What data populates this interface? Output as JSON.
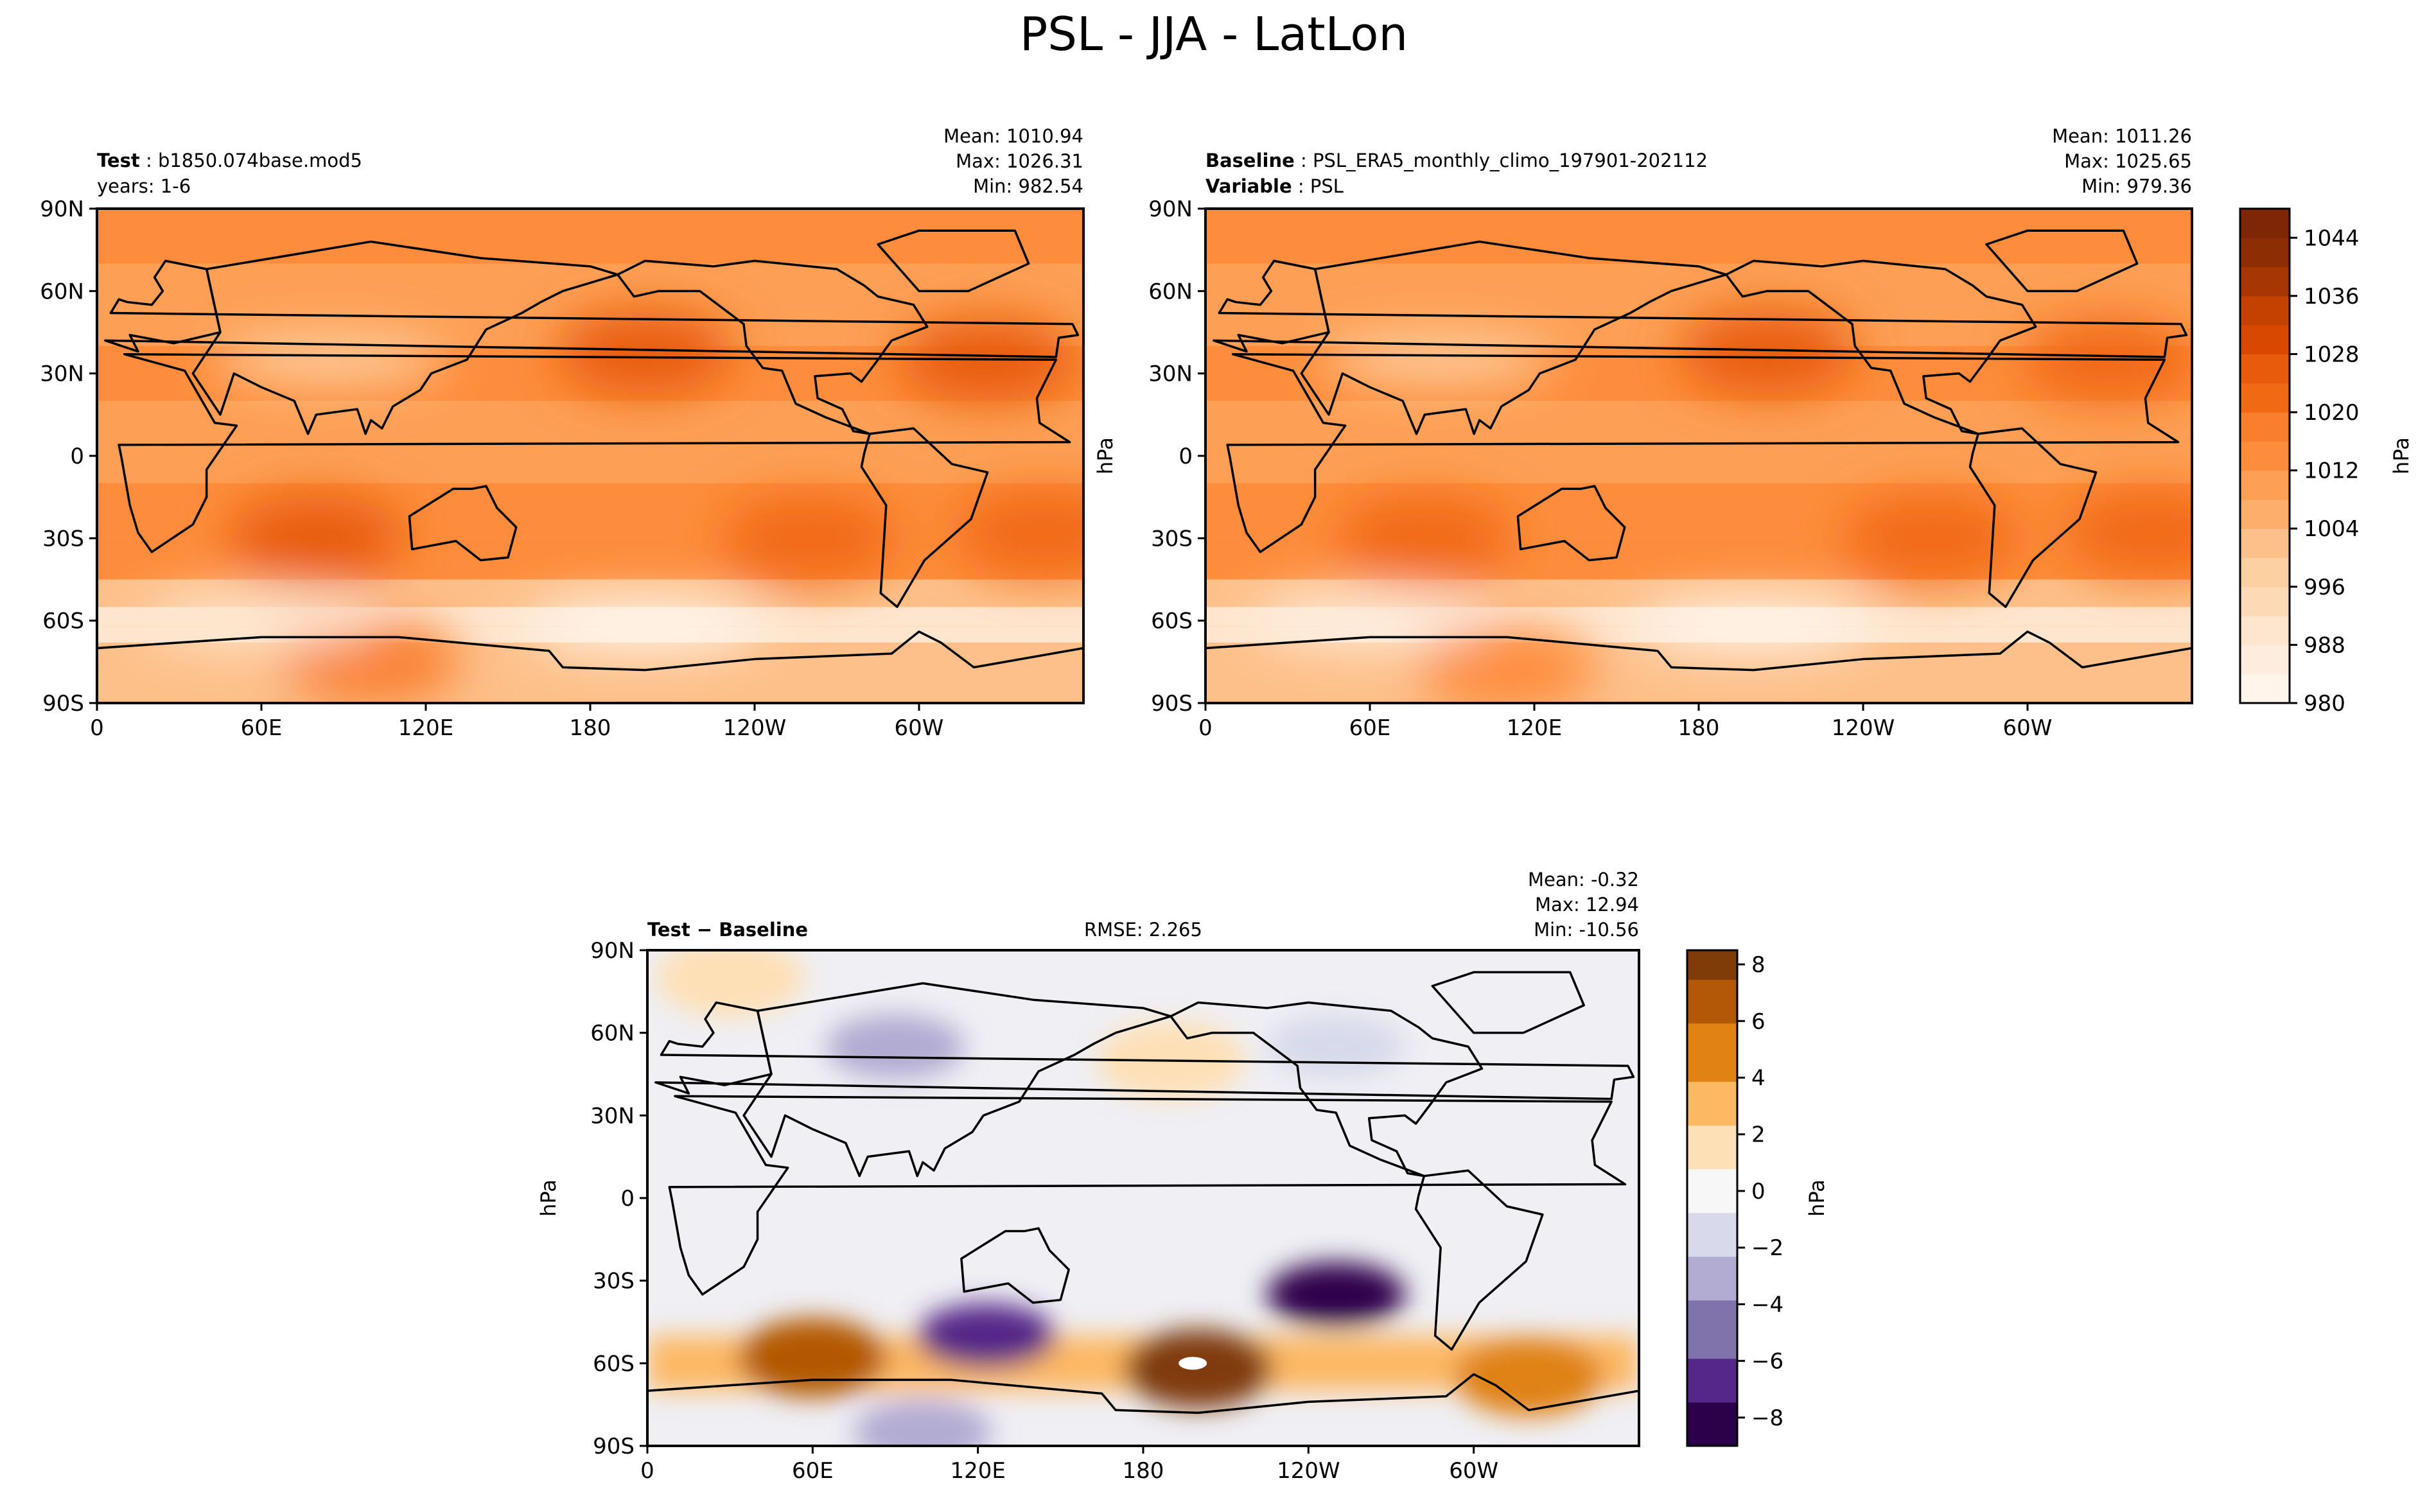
{
  "figure": {
    "title": "PSL - JJA - LatLon"
  },
  "chart_data": [
    {
      "type": "heatmap",
      "panel": "test",
      "label_bold": "Test",
      "label_text": "b1850.074base.mod5",
      "label_line2": "years: 1-6",
      "stats": [
        "Mean: 1010.94",
        "Max: 1026.31",
        "Min: 982.54"
      ],
      "lat_ticks": [
        "90N",
        "60N",
        "30N",
        "0",
        "30S",
        "60S",
        "90S"
      ],
      "lon_ticks": [
        "0",
        "60E",
        "120E",
        "180",
        "120W",
        "60W"
      ],
      "ylabel": "",
      "xlim": [
        0,
        360
      ],
      "ylim": [
        -90,
        90
      ],
      "mean": 1010.94,
      "max": 1026.31,
      "min": 982.54,
      "highs": [
        {
          "lon": 200,
          "lat": 38,
          "value": 1026
        },
        {
          "lon": 325,
          "lat": 35,
          "value": 1024
        },
        {
          "lon": 80,
          "lat": -30,
          "value": 1024
        },
        {
          "lon": 260,
          "lat": -30,
          "value": 1021
        },
        {
          "lon": 345,
          "lat": -28,
          "value": 1021
        },
        {
          "lon": 100,
          "lat": -75,
          "value": 1018
        }
      ],
      "lows": [
        {
          "lon": 85,
          "lat": 35,
          "value": 999
        },
        {
          "lon": 200,
          "lat": -62,
          "value": 983
        },
        {
          "lon": 60,
          "lat": -60,
          "value": 990
        }
      ]
    },
    {
      "type": "heatmap",
      "panel": "baseline",
      "label_bold": "Baseline",
      "label_text": "PSL_ERA5_monthly_climo_197901-202112",
      "label_bold2": "Variable",
      "label_text2": "PSL",
      "stats": [
        "Mean: 1011.26",
        "Max: 1025.65",
        "Min: 979.36"
      ],
      "lat_ticks": [
        "90N",
        "60N",
        "30N",
        "0",
        "30S",
        "60S",
        "90S"
      ],
      "lon_ticks": [
        "0",
        "60E",
        "120E",
        "180",
        "120W",
        "60W"
      ],
      "ylabel": "hPa",
      "xlim": [
        0,
        360
      ],
      "ylim": [
        -90,
        90
      ],
      "mean": 1011.26,
      "max": 1025.65,
      "min": 979.36,
      "highs": [
        {
          "lon": 205,
          "lat": 38,
          "value": 1025
        },
        {
          "lon": 330,
          "lat": 35,
          "value": 1023
        },
        {
          "lon": 80,
          "lat": -30,
          "value": 1021
        },
        {
          "lon": 265,
          "lat": -30,
          "value": 1021
        },
        {
          "lon": 345,
          "lat": -28,
          "value": 1020
        },
        {
          "lon": 110,
          "lat": -78,
          "value": 1014
        }
      ],
      "lows": [
        {
          "lon": 85,
          "lat": 35,
          "value": 998
        },
        {
          "lon": 200,
          "lat": -62,
          "value": 982
        },
        {
          "lon": 60,
          "lat": -60,
          "value": 986
        }
      ],
      "colorbar": {
        "label": "hPa",
        "range": [
          980,
          1048
        ],
        "ticks": [
          "980",
          "988",
          "996",
          "1004",
          "1012",
          "1020",
          "1028",
          "1036",
          "1044"
        ],
        "colors": [
          "#fff5eb",
          "#feedde",
          "#fee6ce",
          "#fdd9b5",
          "#fdd0a2",
          "#fdc08a",
          "#fdae6b",
          "#fd9f55",
          "#fd8d3c",
          "#f97f2e",
          "#f16913",
          "#e85b0c",
          "#d94801",
          "#c44102",
          "#a63603",
          "#8c2d04",
          "#7f2704"
        ]
      }
    },
    {
      "type": "heatmap",
      "panel": "difference",
      "label_bold": "Test − Baseline",
      "rmse": "RMSE: 2.265",
      "stats": [
        "Mean: -0.32",
        "Max: 12.94",
        "Min: -10.56"
      ],
      "lat_ticks": [
        "90N",
        "60N",
        "30N",
        "0",
        "30S",
        "60S",
        "90S"
      ],
      "lon_ticks": [
        "0",
        "60E",
        "120E",
        "180",
        "120W",
        "60W"
      ],
      "ylabel": "hPa",
      "xlim": [
        0,
        360
      ],
      "ylim": [
        -90,
        90
      ],
      "mean": -0.32,
      "max": 12.94,
      "min": -10.56,
      "positive_features": [
        {
          "lon": 200,
          "lat": -62,
          "value": 9
        },
        {
          "lon": 60,
          "lat": -58,
          "value": 6
        },
        {
          "lon": 320,
          "lat": -65,
          "value": 5
        },
        {
          "lon": 30,
          "lat": 80,
          "value": 2
        },
        {
          "lon": 190,
          "lat": 50,
          "value": 2
        }
      ],
      "negative_features": [
        {
          "lon": 123,
          "lat": -50,
          "value": -7
        },
        {
          "lon": 250,
          "lat": -35,
          "value": -8
        },
        {
          "lon": 90,
          "lat": 55,
          "value": -3
        },
        {
          "lon": 250,
          "lat": 55,
          "value": -2
        },
        {
          "lon": 100,
          "lat": -85,
          "value": -4
        }
      ],
      "colorbar": {
        "label": "hPa",
        "range": [
          -9,
          8.5
        ],
        "ticks": [
          "8",
          "6",
          "4",
          "2",
          "0",
          "−2",
          "−4",
          "−6",
          "−8"
        ],
        "tick_values": [
          8,
          6,
          4,
          2,
          0,
          -2,
          -4,
          -6,
          -8
        ],
        "colors": [
          "#2d004b",
          "#542788",
          "#8073ac",
          "#b2abd2",
          "#d8daeb",
          "#f7f7f7",
          "#fee0b6",
          "#fdb863",
          "#e08214",
          "#b35806",
          "#7f3b08"
        ]
      }
    }
  ]
}
